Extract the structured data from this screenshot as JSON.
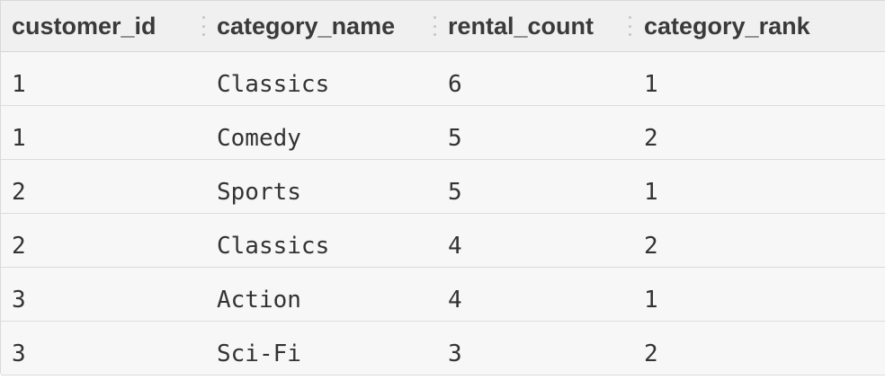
{
  "table": {
    "columns": [
      "customer_id",
      "category_name",
      "rental_count",
      "category_rank"
    ],
    "rows": [
      [
        "1",
        "Classics",
        "6",
        "1"
      ],
      [
        "1",
        "Comedy",
        "5",
        "2"
      ],
      [
        "2",
        "Sports",
        "5",
        "1"
      ],
      [
        "2",
        "Classics",
        "4",
        "2"
      ],
      [
        "3",
        "Action",
        "4",
        "1"
      ],
      [
        "3",
        "Sci-Fi",
        "3",
        "2"
      ]
    ]
  }
}
